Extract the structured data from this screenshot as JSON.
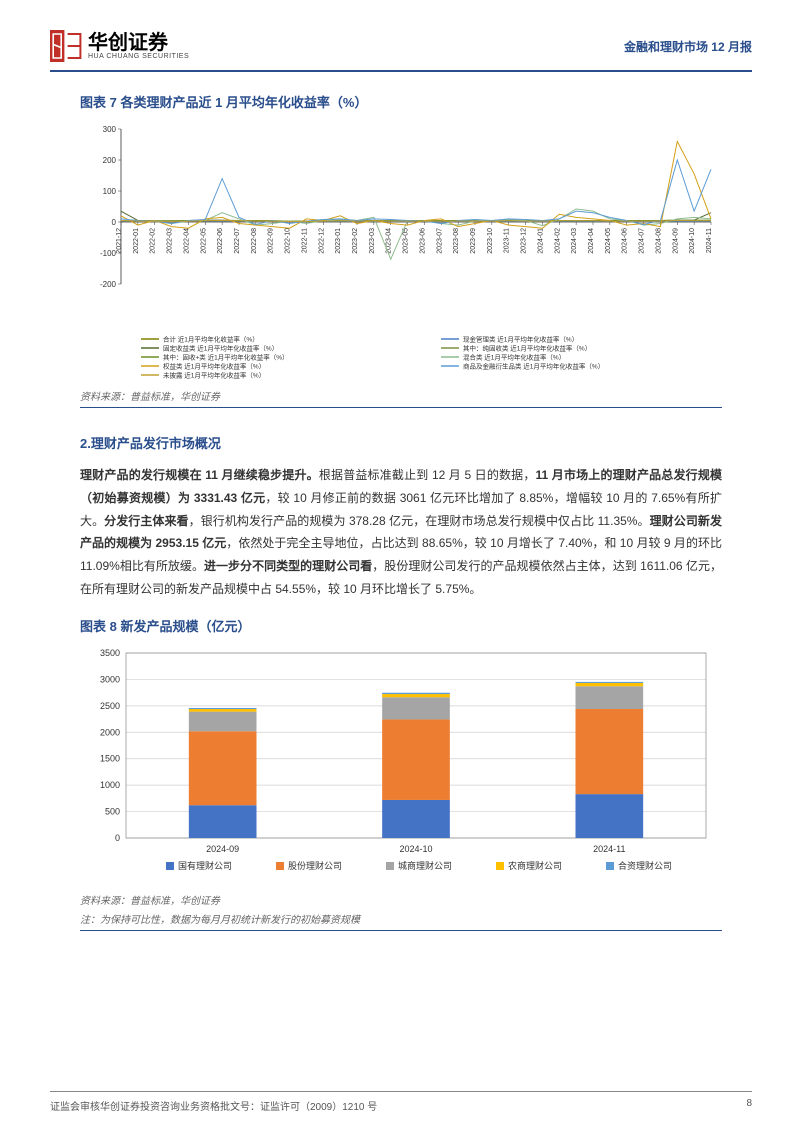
{
  "header": {
    "company_cn": "华创证券",
    "company_en": "HUA CHUANG SECURITIES",
    "report_title": "金融和理财市场 12 月报"
  },
  "chart7": {
    "title": "图表 7   各类理财产品近 1 月平均年化收益率（%）",
    "type": "line",
    "source": "资料来源：普益标准，华创证券",
    "ylim": [
      -200,
      300
    ],
    "ytick_step": 100,
    "yticks": [
      -200,
      -100,
      0,
      100,
      200,
      300
    ],
    "background_color": "#ffffff",
    "axis_color": "#333333",
    "grid_color": "#f0f0f0",
    "label_fontsize": 7,
    "categories": [
      "2021-12",
      "2022-01",
      "2022-02",
      "2022-03",
      "2022-04",
      "2022-05",
      "2022-06",
      "2022-07",
      "2022-08",
      "2022-09",
      "2022-10",
      "2022-11",
      "2022-12",
      "2023-01",
      "2023-02",
      "2023-03",
      "2023-04",
      "2023-05",
      "2023-06",
      "2023-07",
      "2023-08",
      "2023-09",
      "2023-10",
      "2023-11",
      "2023-12",
      "2024-01",
      "2024-02",
      "2024-03",
      "2024-04",
      "2024-05",
      "2024-06",
      "2024-07",
      "2024-08",
      "2024-09",
      "2024-10",
      "2024-11"
    ],
    "series": [
      {
        "name": "合计 近1月平均年化收益率（%）",
        "color": "#808000",
        "width": 1,
        "values": [
          4,
          4,
          3,
          3,
          4,
          5,
          5,
          4,
          4,
          3,
          3,
          2,
          3,
          4,
          4,
          4,
          4,
          4,
          4,
          4,
          4,
          3,
          3,
          4,
          4,
          4,
          4,
          4,
          4,
          4,
          4,
          4,
          4,
          5,
          5,
          5
        ]
      },
      {
        "name": "现金管理类 近1月平均年化收益率（%）",
        "color": "#4a7ec7",
        "width": 1,
        "values": [
          3,
          3,
          3,
          3,
          3,
          3,
          3,
          3,
          3,
          3,
          2,
          2,
          2,
          2,
          2,
          2,
          2,
          2,
          2,
          2,
          2,
          2,
          2,
          2,
          2,
          2,
          2,
          2,
          2,
          2,
          2,
          2,
          2,
          2,
          2,
          2
        ]
      },
      {
        "name": "固定收益类 近1月平均年化收益率（%）",
        "color": "#556b2f",
        "width": 1,
        "values": [
          35,
          5,
          4,
          4,
          5,
          6,
          6,
          5,
          5,
          4,
          3,
          2,
          4,
          5,
          5,
          5,
          5,
          5,
          5,
          5,
          5,
          4,
          4,
          5,
          5,
          5,
          5,
          5,
          5,
          5,
          5,
          5,
          5,
          6,
          6,
          30
        ]
      },
      {
        "name": "其中：纯固收类 近1月平均年化收益率（%）",
        "color": "#7a9440",
        "width": 1,
        "values": [
          5,
          5,
          4,
          4,
          5,
          5,
          5,
          5,
          5,
          4,
          3,
          2,
          4,
          5,
          5,
          5,
          5,
          5,
          5,
          5,
          5,
          4,
          4,
          5,
          5,
          5,
          5,
          5,
          5,
          5,
          5,
          5,
          5,
          6,
          6,
          6
        ]
      },
      {
        "name": "其中：固收+类 近1月平均年化收益率（%）",
        "color": "#6b8e23",
        "width": 1,
        "values": [
          4,
          4,
          3,
          3,
          4,
          5,
          5,
          4,
          4,
          3,
          3,
          2,
          3,
          4,
          4,
          4,
          4,
          4,
          4,
          4,
          4,
          3,
          3,
          4,
          4,
          4,
          4,
          4,
          4,
          4,
          4,
          4,
          4,
          5,
          5,
          5
        ]
      },
      {
        "name": "混合类 近1月平均年化收益率（%）",
        "color": "#8fbc8f",
        "width": 1,
        "values": [
          5,
          3,
          2,
          -5,
          3,
          5,
          30,
          10,
          -10,
          -5,
          3,
          -5,
          5,
          8,
          5,
          15,
          -120,
          5,
          3,
          -5,
          -10,
          3,
          5,
          8,
          5,
          -12,
          10,
          42,
          35,
          10,
          5,
          -10,
          -5,
          10,
          15,
          10
        ]
      },
      {
        "name": "权益类 近1月平均年化收益率（%）",
        "color": "#d4a017",
        "width": 1,
        "values": [
          20,
          -10,
          5,
          -15,
          -20,
          10,
          15,
          -5,
          -10,
          -15,
          -20,
          10,
          5,
          20,
          -5,
          5,
          -5,
          -10,
          5,
          10,
          -15,
          -5,
          5,
          -10,
          -15,
          -20,
          25,
          15,
          10,
          5,
          -10,
          -5,
          -15,
          260,
          155,
          10
        ]
      },
      {
        "name": "商品及金融衍生品类 近1月平均年化收益率（%）",
        "color": "#5b9bd5",
        "width": 1,
        "values": [
          10,
          5,
          3,
          -5,
          5,
          8,
          140,
          15,
          -8,
          5,
          -5,
          3,
          8,
          10,
          5,
          10,
          8,
          5,
          3,
          -5,
          5,
          8,
          5,
          10,
          8,
          5,
          10,
          35,
          30,
          15,
          5,
          -8,
          5,
          200,
          35,
          170
        ]
      },
      {
        "name": "未披露 近1月平均年化收益率（%）",
        "color": "#c0a030",
        "width": 1,
        "values": [
          5,
          3,
          3,
          2,
          3,
          4,
          5,
          4,
          3,
          3,
          2,
          2,
          3,
          4,
          3,
          4,
          3,
          3,
          3,
          3,
          3,
          3,
          3,
          4,
          3,
          3,
          4,
          4,
          4,
          3,
          3,
          3,
          3,
          5,
          4,
          4
        ]
      }
    ]
  },
  "section2": {
    "title": "2.理财产品发行市场概况",
    "para1_bold1": "理财产品的发行规模在 11 月继续稳步提升。",
    "para1_text1": "根据普益标准截止到 12 月 5 日的数据，",
    "para1_bold2": "11 月市场上的理财产品总发行规模（初始募资规模）为 3331.43 亿元",
    "para1_text2": "，较 10 月修正前的数据 3061 亿元环比增加了 8.85%，增幅较 10 月的 7.65%有所扩大。",
    "para1_bold3": "分发行主体来看",
    "para1_text3": "，银行机构发行产品的规模为 378.28 亿元，在理财市场总发行规模中仅占比 11.35%。",
    "para1_bold4": "理财公司新发产品的规模为 2953.15 亿元",
    "para1_text4": "，依然处于完全主导地位，占比达到 88.65%，较 10 月增长了 7.40%，和 10 月较 9 月的环比 11.09%相比有所放缓。",
    "para1_bold5": "进一步分不同类型的理财公司看",
    "para1_text5": "，股份理财公司发行的产品规模依然占主体，达到 1611.06 亿元，在所有理财公司的新发产品规模中占 54.55%，较 10 月环比增长了 5.75%。"
  },
  "chart8": {
    "title": "图表 8   新发产品规模（亿元）",
    "type": "stacked-bar",
    "source": "资料来源：普益标准，华创证券",
    "note": "注：为保持可比性，数据为每月月初统计新发行的初始募资规模",
    "ylim": [
      0,
      3500
    ],
    "ytick_step": 500,
    "yticks": [
      0,
      500,
      1000,
      1500,
      2000,
      2500,
      3000,
      3500
    ],
    "background_color": "#ffffff",
    "axis_color": "#333333",
    "grid_color": "#d0d0d0",
    "label_fontsize": 9,
    "bar_width": 0.35,
    "categories": [
      "2024-09",
      "2024-10",
      "2024-11"
    ],
    "series": [
      {
        "name": "国有理财公司",
        "color": "#4472c4",
        "values": [
          620,
          720,
          830
        ]
      },
      {
        "name": "股份理财公司",
        "color": "#ed7d31",
        "values": [
          1400,
          1523,
          1611
        ]
      },
      {
        "name": "城商理财公司",
        "color": "#a5a5a5",
        "values": [
          370,
          420,
          430
        ]
      },
      {
        "name": "农商理财公司",
        "color": "#ffc000",
        "values": [
          50,
          60,
          62
        ]
      },
      {
        "name": "合资理财公司",
        "color": "#5b9bd5",
        "values": [
          20,
          25,
          20
        ]
      }
    ]
  },
  "footer": {
    "left": "证监会审核华创证券投资咨询业务资格批文号：证监许可（2009）1210 号",
    "page": "8"
  }
}
